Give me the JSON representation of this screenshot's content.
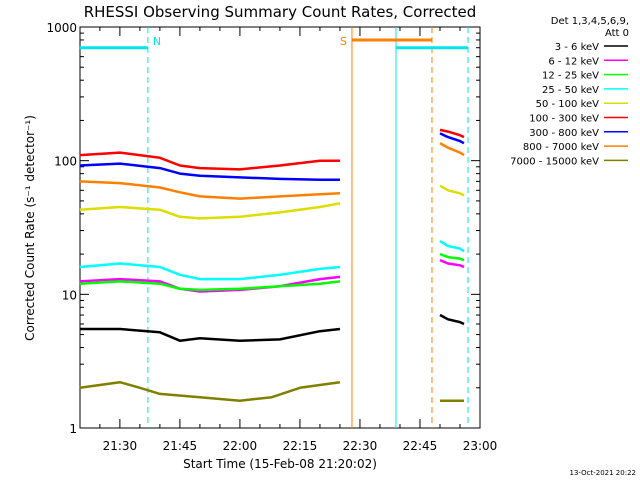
{
  "colors": {
    "background": "#ffffff",
    "axis": "#000000",
    "cyan_marker": "#00e5ee",
    "orange_marker": "#ff7f00"
  },
  "chart_data": {
    "type": "line",
    "title": "RHESSI Observing Summary Count Rates, Corrected",
    "xlabel": "Start Time (15-Feb-08 21:20:02)",
    "ylabel": "Corrected Count Rate (s⁻¹ detector⁻¹)",
    "y_scale": "log",
    "ylim": [
      1,
      1000
    ],
    "xlim": [
      "21:20:02",
      "23:00"
    ],
    "x_ticks": [
      "21:30",
      "21:45",
      "22:00",
      "22:15",
      "22:30",
      "22:45",
      "23:00"
    ],
    "y_ticks": [
      "1",
      "10",
      "100",
      "1000"
    ],
    "legend_title": [
      "Det 1,3,4,5,6,9,",
      "Att 0"
    ],
    "legend_position": "right",
    "footer_date": "13-Oct-2021 20:22",
    "series": [
      {
        "name": "3 - 6 keV",
        "color": "#000000",
        "segments": [
          {
            "x": [
              "21:20",
              "21:30",
              "21:40",
              "21:45",
              "21:50",
              "22:00",
              "22:10",
              "22:20",
              "22:25"
            ],
            "y": [
              5.5,
              5.5,
              5.2,
              4.5,
              4.7,
              4.5,
              4.6,
              5.3,
              5.5
            ]
          },
          {
            "x": [
              "22:50",
              "22:52",
              "22:55",
              "22:56"
            ],
            "y": [
              7,
              6.5,
              6.2,
              6
            ]
          }
        ]
      },
      {
        "name": "6 - 12 keV",
        "color": "#ff00ff",
        "segments": [
          {
            "x": [
              "21:20",
              "21:30",
              "21:40",
              "21:45",
              "21:50",
              "22:00",
              "22:10",
              "22:20",
              "22:25"
            ],
            "y": [
              12.5,
              13,
              12.5,
              11,
              10.5,
              10.8,
              11.5,
              13,
              13.5
            ]
          },
          {
            "x": [
              "22:50",
              "22:52",
              "22:55",
              "22:56"
            ],
            "y": [
              18,
              17,
              16.5,
              16
            ]
          }
        ]
      },
      {
        "name": "12 - 25 keV",
        "color": "#00ff00",
        "segments": [
          {
            "x": [
              "21:20",
              "21:30",
              "21:40",
              "21:45",
              "21:50",
              "22:00",
              "22:10",
              "22:20",
              "22:25"
            ],
            "y": [
              12,
              12.5,
              12,
              11,
              10.8,
              11,
              11.5,
              12,
              12.5
            ]
          },
          {
            "x": [
              "22:50",
              "22:52",
              "22:55",
              "22:56"
            ],
            "y": [
              20,
              19,
              18.5,
              18
            ]
          }
        ]
      },
      {
        "name": "25 - 50 keV",
        "color": "#00ffff",
        "segments": [
          {
            "x": [
              "21:20",
              "21:30",
              "21:40",
              "21:45",
              "21:50",
              "22:00",
              "22:10",
              "22:20",
              "22:25"
            ],
            "y": [
              16,
              17,
              16,
              14,
              13,
              13,
              14,
              15.5,
              16
            ]
          },
          {
            "x": [
              "22:50",
              "22:52",
              "22:55",
              "22:56"
            ],
            "y": [
              25,
              23,
              22,
              21
            ]
          }
        ]
      },
      {
        "name": "50 - 100 keV",
        "color": "#dddd00",
        "segments": [
          {
            "x": [
              "21:20",
              "21:30",
              "21:40",
              "21:45",
              "21:50",
              "22:00",
              "22:10",
              "22:20",
              "22:25"
            ],
            "y": [
              43,
              45,
              43,
              38,
              37,
              38,
              41,
              45,
              48
            ]
          },
          {
            "x": [
              "22:50",
              "22:52",
              "22:55",
              "22:56"
            ],
            "y": [
              65,
              60,
              57,
              55
            ]
          }
        ]
      },
      {
        "name": "100 - 300 keV",
        "color": "#ff0000",
        "segments": [
          {
            "x": [
              "21:20",
              "21:30",
              "21:40",
              "21:45",
              "21:50",
              "22:00",
              "22:10",
              "22:20",
              "22:25"
            ],
            "y": [
              110,
              115,
              105,
              92,
              88,
              86,
              92,
              100,
              100
            ]
          },
          {
            "x": [
              "22:50",
              "22:52",
              "22:55",
              "22:56"
            ],
            "y": [
              170,
              165,
              155,
              150
            ]
          }
        ]
      },
      {
        "name": "300 - 800 keV",
        "color": "#0000ff",
        "segments": [
          {
            "x": [
              "21:20",
              "21:30",
              "21:40",
              "21:45",
              "21:50",
              "22:00",
              "22:10",
              "22:20",
              "22:25"
            ],
            "y": [
              92,
              95,
              88,
              80,
              77,
              75,
              73,
              72,
              72
            ]
          },
          {
            "x": [
              "22:50",
              "22:52",
              "22:55",
              "22:56"
            ],
            "y": [
              160,
              150,
              140,
              135
            ]
          }
        ]
      },
      {
        "name": "800 - 7000 keV",
        "color": "#ff7f00",
        "segments": [
          {
            "x": [
              "21:20",
              "21:30",
              "21:40",
              "21:45",
              "21:50",
              "22:00",
              "22:10",
              "22:20",
              "22:25"
            ],
            "y": [
              70,
              68,
              63,
              58,
              54,
              52,
              54,
              56,
              57
            ]
          },
          {
            "x": [
              "22:50",
              "22:52",
              "22:55",
              "22:56"
            ],
            "y": [
              135,
              125,
              115,
              110
            ]
          }
        ]
      },
      {
        "name": "7000 - 15000 keV",
        "color": "#808000",
        "segments": [
          {
            "x": [
              "21:20",
              "21:30",
              "21:35",
              "21:40",
              "21:50",
              "22:00",
              "22:08",
              "22:15",
              "22:25"
            ],
            "y": [
              2,
              2.2,
              2,
              1.8,
              1.7,
              1.6,
              1.7,
              2,
              2.2
            ]
          },
          {
            "x": [
              "22:50",
              "22:56"
            ],
            "y": [
              1.6,
              1.6
            ]
          }
        ]
      }
    ],
    "annotations": [
      {
        "text": "N",
        "x": "21:37",
        "color": "#00e5ee"
      },
      {
        "text": "S",
        "x": "22:28",
        "color": "#ff7f00"
      }
    ],
    "flag_segments": [
      {
        "from": "21:20",
        "to": "21:37",
        "level": 700,
        "color": "#00e5ee"
      },
      {
        "from": "22:28",
        "to": "22:48",
        "level": 800,
        "color": "#ff7f00"
      },
      {
        "from": "22:39",
        "to": "22:57",
        "level": 700,
        "color": "#00e5ee"
      }
    ],
    "vertical_lines": [
      {
        "x": "21:37",
        "color": "#00e5ee",
        "style": "dashed"
      },
      {
        "x": "22:28",
        "color": "#ff7f00",
        "style": "solid"
      },
      {
        "x": "22:39",
        "color": "#00e5ee",
        "style": "solid"
      },
      {
        "x": "22:48",
        "color": "#ff7f00",
        "style": "dashed"
      },
      {
        "x": "22:57",
        "color": "#00e5ee",
        "style": "dashed"
      }
    ]
  }
}
